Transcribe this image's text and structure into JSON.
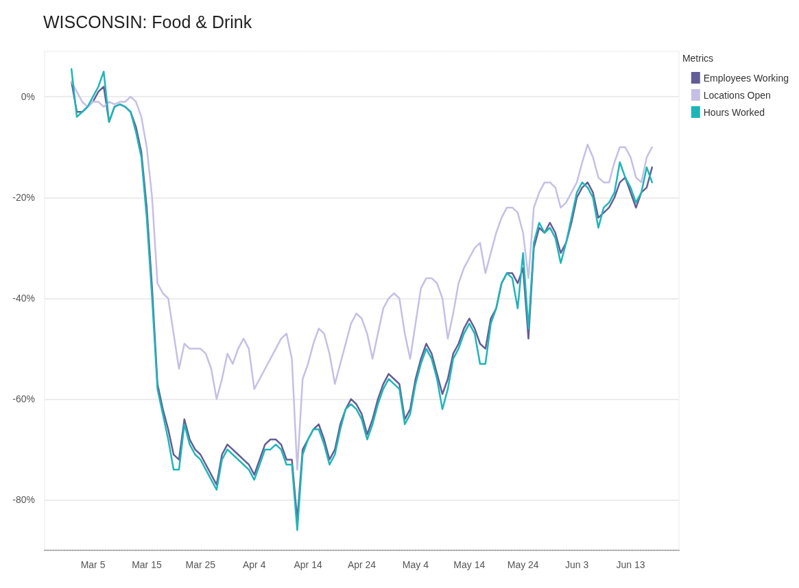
{
  "chart_data": {
    "type": "line",
    "title": "WISCONSIN: Food & Drink",
    "legend_title": "Metrics",
    "legend": "top right",
    "grid": "y",
    "marker": "none",
    "line_style": "solid",
    "x": [
      "--03-01",
      "--03-02",
      "--03-03",
      "--03-04",
      "--03-05",
      "--03-06",
      "--03-07",
      "--03-08",
      "--03-09",
      "--03-10",
      "--03-11",
      "--03-12",
      "--03-13",
      "--03-14",
      "--03-15",
      "--03-16",
      "--03-17",
      "--03-18",
      "--03-19",
      "--03-20",
      "--03-21",
      "--03-22",
      "--03-23",
      "--03-24",
      "--03-25",
      "--03-26",
      "--03-27",
      "--03-28",
      "--03-29",
      "--03-30",
      "--03-31",
      "--04-01",
      "--04-02",
      "--04-03",
      "--04-04",
      "--04-05",
      "--04-06",
      "--04-07",
      "--04-08",
      "--04-09",
      "--04-10",
      "--04-11",
      "--04-12",
      "--04-13",
      "--04-14",
      "--04-15",
      "--04-16",
      "--04-17",
      "--04-18",
      "--04-19",
      "--04-20",
      "--04-21",
      "--04-22",
      "--04-23",
      "--04-24",
      "--04-25",
      "--04-26",
      "--04-27",
      "--04-28",
      "--04-29",
      "--04-30",
      "--05-01",
      "--05-02",
      "--05-03",
      "--05-04",
      "--05-05",
      "--05-06",
      "--05-07",
      "--05-08",
      "--05-09",
      "--05-10",
      "--05-11",
      "--05-12",
      "--05-13",
      "--05-14",
      "--05-15",
      "--05-16",
      "--05-17",
      "--05-18",
      "--05-19",
      "--05-20",
      "--05-21",
      "--05-22",
      "--05-23",
      "--05-24",
      "--05-25",
      "--05-26",
      "--05-27",
      "--05-28",
      "--05-29",
      "--05-30",
      "--05-31",
      "--06-01",
      "--06-02",
      "--06-03",
      "--06-04",
      "--06-05",
      "--06-06",
      "--06-07",
      "--06-08",
      "--06-09",
      "--06-10",
      "--06-11",
      "--06-12",
      "--06-13",
      "--06-14",
      "--06-15",
      "--06-16",
      "--06-17"
    ],
    "series": [
      {
        "name": "Employees Working",
        "color": "#625d96",
        "values": [
          3,
          -3,
          -3,
          -2,
          -1,
          1,
          2,
          -5,
          -2,
          -1.5,
          -2,
          -3,
          -6,
          -11,
          -22,
          -38,
          -57,
          -62,
          -66,
          -71,
          -72,
          -64,
          -68,
          -70,
          -71,
          -73,
          -75,
          -77,
          -71,
          -69,
          -70,
          -71,
          -72,
          -73,
          -75,
          -72,
          -69,
          -68,
          -68,
          -69,
          -72,
          -72,
          -84,
          -70,
          -68,
          -66,
          -65,
          -68,
          -72,
          -70,
          -65,
          -62,
          -60,
          -61,
          -63,
          -67,
          -64,
          -60,
          -57,
          -55,
          -56,
          -57,
          -64,
          -62,
          -56,
          -52,
          -49,
          -51,
          -55,
          -59,
          -56,
          -51,
          -49,
          -46,
          -44,
          -46,
          -49,
          -50,
          -44,
          -42,
          -37,
          -35,
          -35,
          -37,
          -34,
          -48,
          -30,
          -26,
          -27,
          -25,
          -27,
          -31,
          -29,
          -25,
          -20,
          -18,
          -17,
          -19,
          -24,
          -23,
          -22,
          -20,
          -17,
          -16,
          -19,
          -22,
          -19,
          -18,
          -14
        ]
      },
      {
        "name": "Locations Open",
        "color": "#c5bfe6",
        "values": [
          3,
          1,
          -1,
          -2,
          -1,
          -1,
          -2,
          -1,
          -1.5,
          -1,
          -1,
          0,
          -1,
          -4,
          -10,
          -20,
          -37,
          -39,
          -40,
          -47,
          -54,
          -49,
          -50,
          -50,
          -50,
          -51,
          -54,
          -60,
          -56,
          -51,
          -53,
          -50,
          -48,
          -50,
          -58,
          -56,
          -54,
          -52,
          -50,
          -48,
          -47,
          -52,
          -74,
          -56,
          -53,
          -49,
          -46,
          -47,
          -51,
          -57,
          -53,
          -49,
          -45,
          -43,
          -44,
          -47,
          -52,
          -47,
          -42,
          -40,
          -39,
          -40,
          -47,
          -52,
          -45,
          -38,
          -36,
          -36,
          -37,
          -40,
          -48,
          -43,
          -37,
          -34,
          -32,
          -30,
          -29,
          -35,
          -31,
          -27,
          -24,
          -22,
          -22,
          -23,
          -27,
          -36,
          -22,
          -19,
          -17,
          -17,
          -18,
          -22,
          -21,
          -19,
          -17,
          -13,
          -9.5,
          -12,
          -16,
          -17,
          -17,
          -13,
          -10,
          -10,
          -12,
          -16,
          -17,
          -12,
          -10
        ]
      },
      {
        "name": "Hours Worked",
        "color": "#1fb5b8",
        "values": [
          5.5,
          -4,
          -3,
          -2,
          0,
          2,
          5,
          -5,
          -2,
          -1.5,
          -2,
          -3,
          -7,
          -12,
          -24,
          -40,
          -58,
          -63,
          -68,
          -74,
          -74,
          -65,
          -69,
          -71,
          -72,
          -74,
          -76,
          -78,
          -72,
          -70,
          -71,
          -72,
          -73,
          -74,
          -76,
          -73,
          -70,
          -70,
          -69,
          -70,
          -73,
          -73,
          -86,
          -71,
          -68,
          -66,
          -66,
          -69,
          -73,
          -71,
          -66,
          -62,
          -61,
          -62,
          -64,
          -68,
          -65,
          -61,
          -58,
          -56,
          -57,
          -58,
          -65,
          -63,
          -57,
          -53,
          -50,
          -52,
          -56,
          -62,
          -58,
          -52,
          -50,
          -47,
          -45,
          -47,
          -53,
          -53,
          -45,
          -42,
          -37,
          -35,
          -36,
          -42,
          -31,
          -46,
          -29,
          -25,
          -27,
          -26,
          -28,
          -33,
          -29,
          -24,
          -19,
          -17,
          -18,
          -20,
          -26,
          -22,
          -21,
          -19,
          -13,
          -16,
          -18,
          -21,
          -19,
          -14,
          -17
        ]
      }
    ],
    "xlim": [
      "--02-24",
      "--06-22"
    ],
    "xticks": [
      {
        "value": "--03-05",
        "label": "Mar 5"
      },
      {
        "value": "--03-15",
        "label": "Mar 15"
      },
      {
        "value": "--03-25",
        "label": "Mar 25"
      },
      {
        "value": "--04-04",
        "label": "Apr 4"
      },
      {
        "value": "--04-14",
        "label": "Apr 14"
      },
      {
        "value": "--04-24",
        "label": "Apr 24"
      },
      {
        "value": "--05-04",
        "label": "May 4"
      },
      {
        "value": "--05-14",
        "label": "May 14"
      },
      {
        "value": "--05-24",
        "label": "May 24"
      },
      {
        "value": "--06-03",
        "label": "Jun 3"
      },
      {
        "value": "--06-13",
        "label": "Jun 13"
      }
    ],
    "ylim": [
      -90,
      9
    ],
    "yticks": [
      {
        "value": 0,
        "label": "0%"
      },
      {
        "value": -20,
        "label": "-20%"
      },
      {
        "value": -40,
        "label": "-40%"
      },
      {
        "value": -60,
        "label": "-60%"
      },
      {
        "value": -80,
        "label": "-80%"
      }
    ]
  }
}
